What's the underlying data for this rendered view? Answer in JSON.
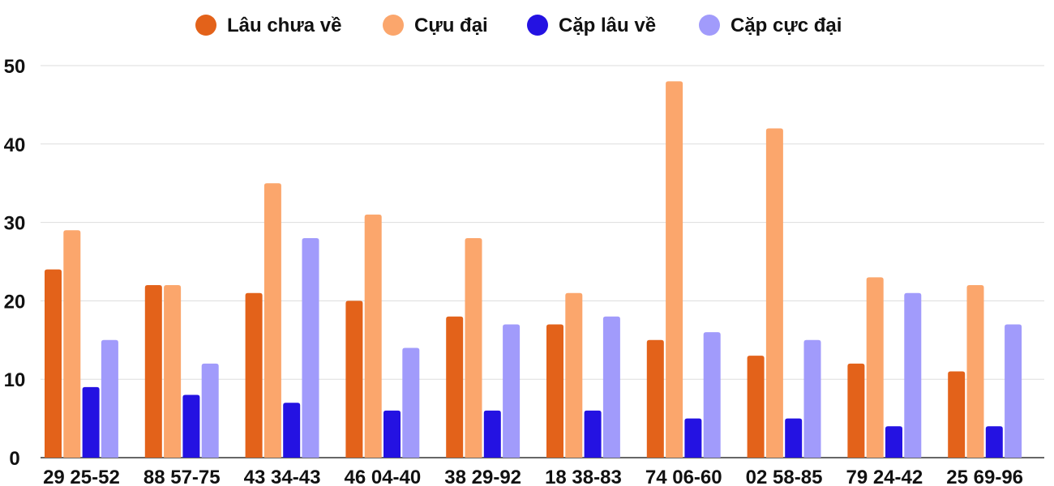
{
  "chart_data": {
    "type": "bar",
    "title": "",
    "xlabel": "",
    "ylabel": "",
    "ylim": [
      0,
      50
    ],
    "yticks": [
      0,
      10,
      20,
      30,
      40,
      50
    ],
    "grid": true,
    "legend_position": "top-center",
    "categories": [
      "29 25-52",
      "88 57-75",
      "43 34-43",
      "46 04-40",
      "38 29-92",
      "18 38-83",
      "74 06-60",
      "02 58-85",
      "79 24-42",
      "25 69-96"
    ],
    "series": [
      {
        "name": "Lâu chưa về",
        "color": "#E3621A",
        "values": [
          24,
          22,
          21,
          20,
          18,
          17,
          15,
          13,
          12,
          11
        ]
      },
      {
        "name": "Cựu đại",
        "color": "#FBA66C",
        "values": [
          29,
          22,
          35,
          31,
          28,
          21,
          48,
          42,
          23,
          22
        ]
      },
      {
        "name": "Cặp lâu về",
        "color": "#2412E2",
        "values": [
          9,
          8,
          7,
          6,
          6,
          6,
          5,
          5,
          4,
          4
        ]
      },
      {
        "name": "Cặp cực đại",
        "color": "#A19BFB",
        "values": [
          15,
          12,
          28,
          14,
          17,
          18,
          16,
          15,
          21,
          17
        ]
      }
    ]
  }
}
